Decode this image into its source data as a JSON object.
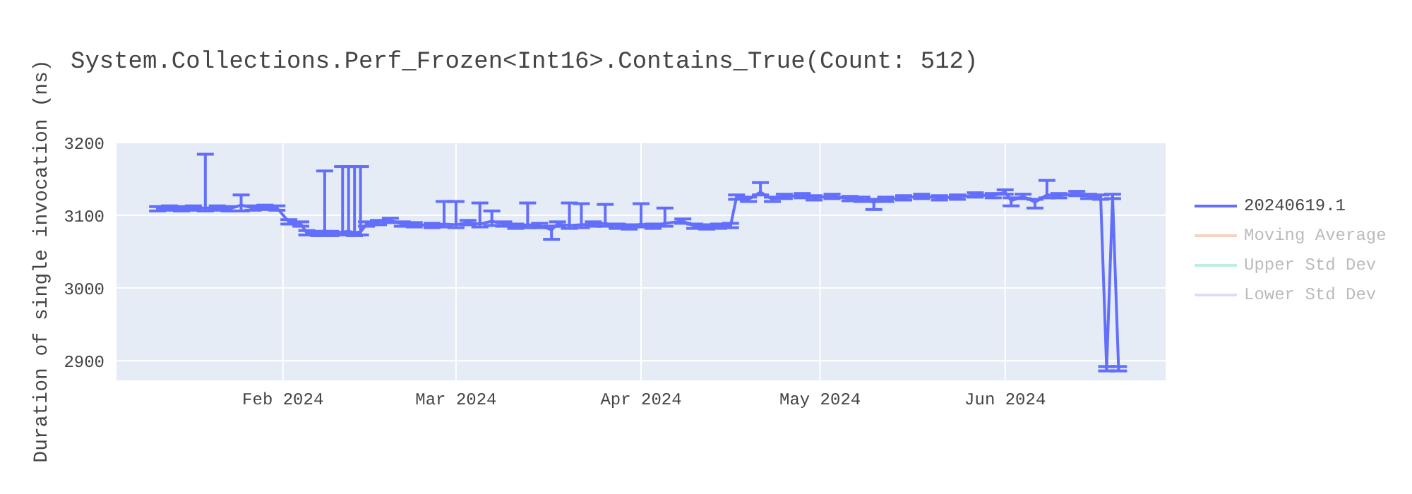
{
  "chart_data": {
    "type": "line",
    "title": "System.Collections.Perf_Frozen<Int16>.Contains_True(Count: 512)",
    "ylabel": "Duration of single invocation (ns)",
    "x": [
      "2024-01-11",
      "2024-01-13",
      "2024-01-15",
      "2024-01-17",
      "2024-01-19",
      "2024-01-21",
      "2024-01-23",
      "2024-01-25",
      "2024-01-27",
      "2024-01-29",
      "2024-01-31",
      "2024-02-02",
      "2024-02-04",
      "2024-02-05",
      "2024-02-07",
      "2024-02-08",
      "2024-02-09",
      "2024-02-11",
      "2024-02-12",
      "2024-02-13",
      "2024-02-14",
      "2024-02-15",
      "2024-02-17",
      "2024-02-19",
      "2024-02-21",
      "2024-02-23",
      "2024-02-26",
      "2024-02-28",
      "2024-03-01",
      "2024-03-03",
      "2024-03-05",
      "2024-03-07",
      "2024-03-09",
      "2024-03-11",
      "2024-03-13",
      "2024-03-15",
      "2024-03-17",
      "2024-03-18",
      "2024-03-20",
      "2024-03-22",
      "2024-03-24",
      "2024-03-26",
      "2024-03-28",
      "2024-03-30",
      "2024-04-01",
      "2024-04-03",
      "2024-04-05",
      "2024-04-08",
      "2024-04-10",
      "2024-04-12",
      "2024-04-14",
      "2024-04-16",
      "2024-04-17",
      "2024-04-19",
      "2024-04-21",
      "2024-04-23",
      "2024-04-25",
      "2024-04-28",
      "2024-04-30",
      "2024-05-03",
      "2024-05-06",
      "2024-05-08",
      "2024-05-10",
      "2024-05-12",
      "2024-05-15",
      "2024-05-18",
      "2024-05-21",
      "2024-05-24",
      "2024-05-27",
      "2024-05-30",
      "2024-06-01",
      "2024-06-02",
      "2024-06-04",
      "2024-06-06",
      "2024-06-08",
      "2024-06-10",
      "2024-06-13",
      "2024-06-15",
      "2024-06-17",
      "2024-06-18",
      "2024-06-19",
      "2024-06-20"
    ],
    "series": [
      {
        "name": "20240619.1",
        "color": "#636efa",
        "values": [
          3109,
          3110,
          3109,
          3110,
          3110,
          3110,
          3109,
          3114,
          3110,
          3111,
          3110,
          3091,
          3088,
          3076,
          3075,
          3076,
          3075,
          3077,
          3078,
          3076,
          3077,
          3088,
          3090,
          3093,
          3088,
          3087,
          3086,
          3088,
          3087,
          3090,
          3088,
          3092,
          3088,
          3085,
          3087,
          3086,
          3080,
          3088,
          3086,
          3087,
          3088,
          3089,
          3085,
          3084,
          3088,
          3085,
          3089,
          3092,
          3085,
          3084,
          3085,
          3086,
          3125,
          3122,
          3132,
          3122,
          3126,
          3127,
          3124,
          3126,
          3123,
          3122,
          3118,
          3122,
          3124,
          3126,
          3124,
          3125,
          3128,
          3127,
          3132,
          3120,
          3126,
          3118,
          3128,
          3127,
          3130,
          3126,
          3125,
          2889,
          3126,
          2889
        ],
        "errors": [
          3,
          3,
          3,
          3,
          [
            3106,
            3184
          ],
          3,
          3,
          [
            3106,
            3128
          ],
          3,
          3,
          3,
          3,
          3,
          3,
          3,
          [
            3072,
            3161
          ],
          3,
          [
            3073,
            3167
          ],
          [
            3074,
            3167
          ],
          [
            3072,
            3167
          ],
          [
            3073,
            3167
          ],
          3,
          3,
          3,
          3,
          3,
          3,
          [
            3084,
            3119
          ],
          [
            3083,
            3119
          ],
          3,
          [
            3084,
            3117
          ],
          [
            3086,
            3106
          ],
          3,
          3,
          [
            3083,
            3117
          ],
          3,
          [
            3067,
            3085
          ],
          3,
          [
            3082,
            3117
          ],
          [
            3083,
            3116
          ],
          3,
          [
            3085,
            3115
          ],
          3,
          3,
          [
            3084,
            3116
          ],
          3,
          [
            3085,
            3110
          ],
          3,
          3,
          3,
          3,
          3,
          3,
          3,
          [
            3128,
            3145
          ],
          3,
          3,
          3,
          3,
          3,
          3,
          3,
          [
            3108,
            3122
          ],
          3,
          3,
          3,
          3,
          3,
          3,
          3,
          3,
          [
            3113,
            3124
          ],
          3,
          [
            3110,
            3122
          ],
          [
            3124,
            3148
          ],
          3,
          3,
          3,
          3,
          3,
          3,
          3
        ]
      },
      {
        "name": "Moving Average",
        "color": "#f4a58a",
        "values": [
          null,
          null,
          null,
          null,
          null,
          null,
          null,
          null,
          null,
          null,
          null,
          null,
          null,
          null,
          null,
          null,
          null,
          null,
          null,
          null,
          null,
          null,
          null,
          null,
          null,
          null,
          null,
          null,
          null,
          null,
          null,
          null,
          null,
          null,
          null,
          null,
          null,
          null,
          null,
          null,
          null,
          null,
          null,
          null,
          null,
          null,
          null,
          null,
          null,
          null,
          null,
          null,
          null,
          null,
          null,
          null,
          null,
          null,
          null,
          null,
          null,
          null,
          null,
          null,
          null,
          null,
          null,
          null,
          null,
          null,
          null,
          null,
          null,
          null,
          null,
          null,
          null,
          null,
          null,
          null,
          null,
          null
        ]
      },
      {
        "name": "Upper Std Dev",
        "color": "#7ee0b8",
        "values": [
          null,
          null,
          null,
          null,
          null,
          null,
          null,
          null,
          null,
          null,
          null,
          null,
          null,
          null,
          null,
          null,
          null,
          null,
          null,
          null,
          null,
          null,
          null,
          null,
          null,
          null,
          null,
          null,
          null,
          null,
          null,
          null,
          null,
          null,
          null,
          null,
          null,
          null,
          null,
          null,
          null,
          null,
          null,
          null,
          null,
          null,
          null,
          null,
          null,
          null,
          null,
          null,
          null,
          null,
          null,
          null,
          null,
          null,
          null,
          null,
          null,
          null,
          null,
          null,
          null,
          null,
          null,
          null,
          null,
          null,
          null,
          null,
          null,
          null,
          null,
          null,
          null,
          null,
          null,
          null,
          null,
          null
        ]
      },
      {
        "name": "Lower Std Dev",
        "color": "#c9b3f7",
        "values": [
          null,
          null,
          null,
          null,
          null,
          null,
          null,
          null,
          null,
          null,
          null,
          null,
          null,
          null,
          null,
          null,
          null,
          null,
          null,
          null,
          null,
          null,
          null,
          null,
          null,
          null,
          null,
          null,
          null,
          null,
          null,
          null,
          null,
          null,
          null,
          null,
          null,
          null,
          null,
          null,
          null,
          null,
          null,
          null,
          null,
          null,
          null,
          null,
          null,
          null,
          null,
          null,
          null,
          null,
          null,
          null,
          null,
          null,
          null,
          null,
          null,
          null,
          null,
          null,
          null,
          null,
          null,
          null,
          null,
          null,
          null,
          null,
          null,
          null,
          null,
          null,
          null,
          null,
          null,
          null,
          null,
          null
        ]
      }
    ],
    "xlim": [
      "2024-01-04",
      "2024-06-28"
    ],
    "xticks": [
      {
        "value": "2024-02-01",
        "label": "Feb 2024"
      },
      {
        "value": "2024-03-01",
        "label": "Mar 2024"
      },
      {
        "value": "2024-04-01",
        "label": "Apr 2024"
      },
      {
        "value": "2024-05-01",
        "label": "May 2024"
      },
      {
        "value": "2024-06-01",
        "label": "Jun 2024"
      }
    ],
    "ylim": [
      2872,
      3202
    ],
    "yticks": [
      2900,
      3000,
      3100,
      3200
    ],
    "grid": true,
    "legend": "right",
    "marker": "none",
    "line_style": "solid"
  }
}
